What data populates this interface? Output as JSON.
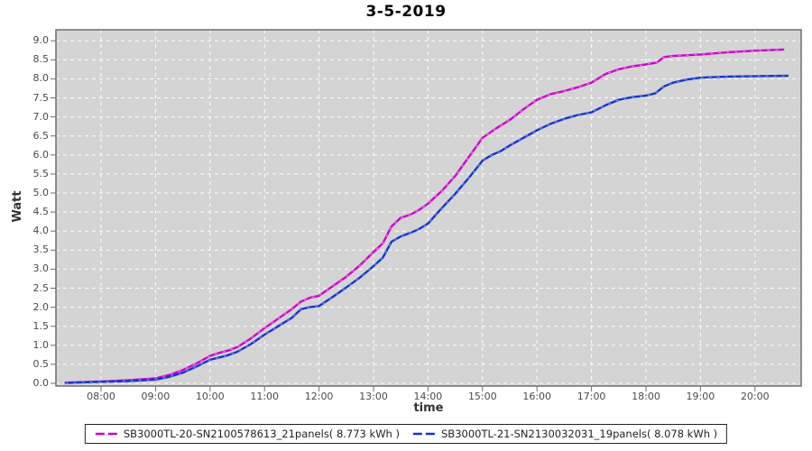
{
  "window": {
    "title": "3-5-2019"
  },
  "chart_data": {
    "type": "line",
    "title": "3-5-2019",
    "xlabel": "time",
    "ylabel": "Watt",
    "plot_bg": "#d4d4d4",
    "border_color": "#6e6e6e",
    "grid": {
      "show": true,
      "color": "#ffffff",
      "style": "dashed"
    },
    "legend_position": "bottom-center",
    "x_axis": {
      "ticks_hours": [
        8,
        9,
        10,
        11,
        12,
        13,
        14,
        15,
        16,
        17,
        18,
        19,
        20
      ],
      "labels": [
        "08:00",
        "09:00",
        "10:00",
        "11:00",
        "12:00",
        "13:00",
        "14:00",
        "15:00",
        "16:00",
        "17:00",
        "18:00",
        "19:00",
        "20:00"
      ],
      "range_hours": [
        7.17,
        20.85
      ]
    },
    "y_axis": {
      "min": 0.0,
      "max": 9.0,
      "tick_step": 0.5,
      "labels": [
        "0.0",
        "0.5",
        "1.0",
        "1.5",
        "2.0",
        "2.5",
        "3.0",
        "3.5",
        "4.0",
        "4.5",
        "5.0",
        "5.5",
        "6.0",
        "6.5",
        "7.0",
        "7.5",
        "8.0",
        "8.5",
        "9.0"
      ],
      "range": [
        -0.07,
        9.29
      ]
    },
    "series": [
      {
        "name": "SB3000TL-20-SN2100578613_21panels( 8.773 kWh )",
        "total_kwh": 8.773,
        "color": "#cc00cc",
        "highlight": "#ee7ae6",
        "points": [
          [
            7.35,
            0.02
          ],
          [
            8,
            0.05
          ],
          [
            8.5,
            0.08
          ],
          [
            9,
            0.13
          ],
          [
            9.25,
            0.22
          ],
          [
            9.5,
            0.35
          ],
          [
            9.75,
            0.52
          ],
          [
            10,
            0.72
          ],
          [
            10.17,
            0.8
          ],
          [
            10.33,
            0.86
          ],
          [
            10.5,
            0.95
          ],
          [
            10.75,
            1.18
          ],
          [
            11,
            1.45
          ],
          [
            11.25,
            1.7
          ],
          [
            11.5,
            1.95
          ],
          [
            11.67,
            2.15
          ],
          [
            11.83,
            2.25
          ],
          [
            12,
            2.3
          ],
          [
            12.25,
            2.55
          ],
          [
            12.5,
            2.8
          ],
          [
            12.75,
            3.1
          ],
          [
            13,
            3.45
          ],
          [
            13.17,
            3.68
          ],
          [
            13.33,
            4.12
          ],
          [
            13.5,
            4.35
          ],
          [
            13.67,
            4.43
          ],
          [
            13.83,
            4.55
          ],
          [
            14,
            4.72
          ],
          [
            14.25,
            5.05
          ],
          [
            14.5,
            5.45
          ],
          [
            14.75,
            5.95
          ],
          [
            15,
            6.45
          ],
          [
            15.25,
            6.7
          ],
          [
            15.5,
            6.92
          ],
          [
            15.75,
            7.2
          ],
          [
            16,
            7.45
          ],
          [
            16.25,
            7.6
          ],
          [
            16.5,
            7.68
          ],
          [
            16.75,
            7.78
          ],
          [
            17,
            7.9
          ],
          [
            17.25,
            8.12
          ],
          [
            17.5,
            8.25
          ],
          [
            17.75,
            8.33
          ],
          [
            18,
            8.38
          ],
          [
            18.2,
            8.43
          ],
          [
            18.33,
            8.57
          ],
          [
            18.5,
            8.6
          ],
          [
            19,
            8.64
          ],
          [
            19.5,
            8.7
          ],
          [
            20,
            8.74
          ],
          [
            20.52,
            8.77
          ]
        ]
      },
      {
        "name": "SB3000TL-21-SN2130032031_19panels( 8.078 kWh )",
        "total_kwh": 8.078,
        "color": "#1433cf",
        "highlight": "#6b8ced",
        "points": [
          [
            7.35,
            0.01
          ],
          [
            8,
            0.04
          ],
          [
            8.5,
            0.06
          ],
          [
            9,
            0.1
          ],
          [
            9.25,
            0.17
          ],
          [
            9.5,
            0.28
          ],
          [
            9.75,
            0.44
          ],
          [
            10,
            0.62
          ],
          [
            10.17,
            0.68
          ],
          [
            10.33,
            0.74
          ],
          [
            10.5,
            0.83
          ],
          [
            10.75,
            1.03
          ],
          [
            11,
            1.28
          ],
          [
            11.25,
            1.5
          ],
          [
            11.5,
            1.72
          ],
          [
            11.67,
            1.95
          ],
          [
            11.83,
            2.0
          ],
          [
            12,
            2.03
          ],
          [
            12.25,
            2.27
          ],
          [
            12.5,
            2.52
          ],
          [
            12.75,
            2.78
          ],
          [
            13,
            3.08
          ],
          [
            13.17,
            3.3
          ],
          [
            13.33,
            3.72
          ],
          [
            13.5,
            3.86
          ],
          [
            13.67,
            3.95
          ],
          [
            13.83,
            4.05
          ],
          [
            14,
            4.2
          ],
          [
            14.25,
            4.6
          ],
          [
            14.5,
            4.98
          ],
          [
            14.75,
            5.4
          ],
          [
            15,
            5.85
          ],
          [
            15.17,
            6.0
          ],
          [
            15.33,
            6.1
          ],
          [
            15.5,
            6.25
          ],
          [
            15.75,
            6.45
          ],
          [
            16,
            6.65
          ],
          [
            16.25,
            6.82
          ],
          [
            16.5,
            6.95
          ],
          [
            16.75,
            7.05
          ],
          [
            17,
            7.12
          ],
          [
            17.25,
            7.3
          ],
          [
            17.5,
            7.45
          ],
          [
            17.75,
            7.52
          ],
          [
            18,
            7.56
          ],
          [
            18.17,
            7.62
          ],
          [
            18.33,
            7.8
          ],
          [
            18.5,
            7.9
          ],
          [
            18.75,
            7.98
          ],
          [
            19,
            8.03
          ],
          [
            19.5,
            8.06
          ],
          [
            20,
            8.07
          ],
          [
            20.6,
            8.08
          ]
        ]
      }
    ]
  }
}
